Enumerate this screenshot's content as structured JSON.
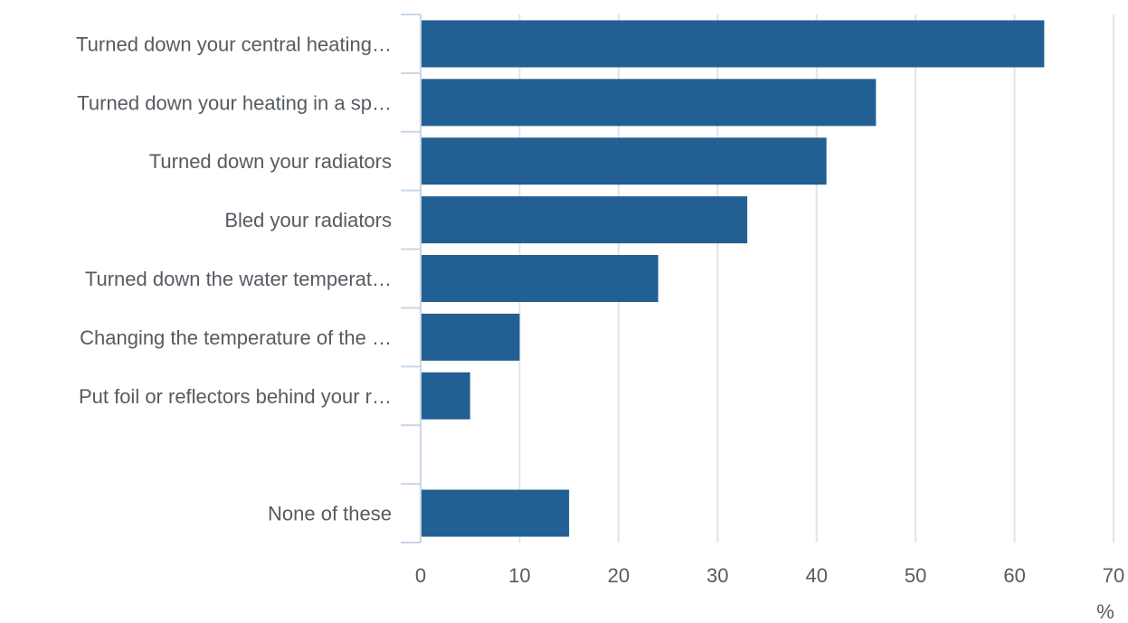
{
  "chart_data": {
    "type": "bar",
    "orientation": "horizontal",
    "categories": [
      "Turned down your central heating…",
      "Turned down your heating in a sp…",
      "Turned down your radiators",
      "Bled your radiators",
      "Turned down the water temperat…",
      "Changing the temperature of the …",
      "Put foil or reflectors behind your r…",
      "",
      "None of these"
    ],
    "values": [
      63,
      46,
      41,
      33,
      24,
      10,
      5,
      null,
      15
    ],
    "xlim": [
      0,
      70
    ],
    "xticks": [
      0,
      10,
      20,
      30,
      40,
      50,
      60,
      70
    ],
    "tick_labels": [
      "0",
      "10",
      "20",
      "30",
      "40",
      "50",
      "60",
      "70"
    ],
    "unit": "%",
    "grid": "vertical",
    "bar_color": "#226094"
  }
}
